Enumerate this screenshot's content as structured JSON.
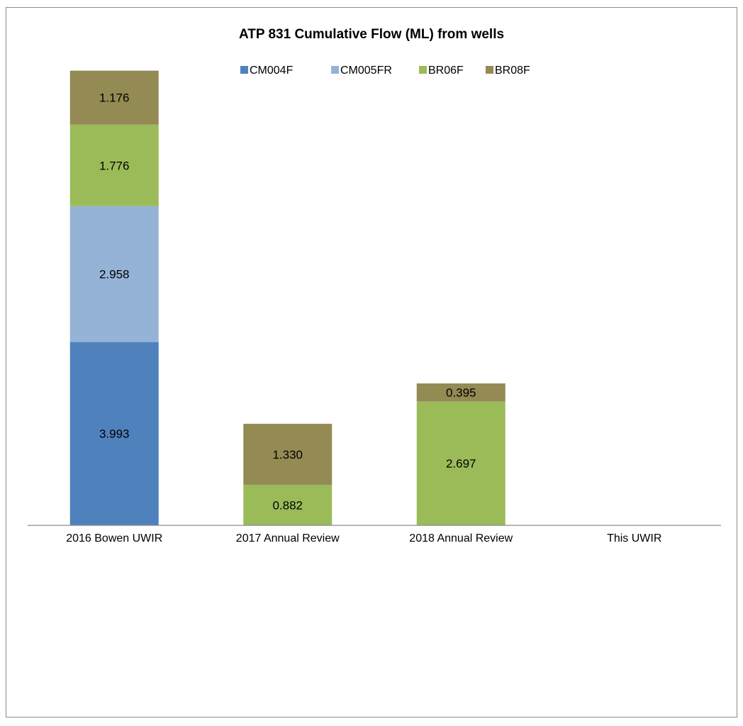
{
  "chart_data": {
    "type": "bar",
    "stacked": true,
    "title": "ATP 831 Cumulative Flow (ML) from wells",
    "xlabel": "",
    "ylabel": "",
    "ylim": [
      0,
      10.5
    ],
    "grid": false,
    "legend_position": "top",
    "categories": [
      "2016 Bowen UWIR",
      "2017 Annual Review",
      "2018 Annual Review",
      "This UWIR"
    ],
    "series": [
      {
        "name": "CM004F",
        "color": "#4F81BD",
        "values": [
          3.993,
          0,
          0,
          0
        ],
        "labels": [
          "3.993",
          "",
          "",
          ""
        ]
      },
      {
        "name": "CM005FR",
        "color": "#95B3D7",
        "values": [
          2.958,
          0,
          0,
          0
        ],
        "labels": [
          "2.958",
          "",
          "",
          ""
        ]
      },
      {
        "name": "BR06F",
        "color": "#9BBB59",
        "values": [
          1.776,
          0.882,
          2.697,
          0
        ],
        "labels": [
          "1.776",
          "0.882",
          "2.697",
          ""
        ]
      },
      {
        "name": "BR08F",
        "color": "#948A54",
        "values": [
          1.176,
          1.33,
          0.395,
          0
        ],
        "labels": [
          "1.176",
          "1.330",
          "0.395",
          ""
        ]
      }
    ]
  }
}
